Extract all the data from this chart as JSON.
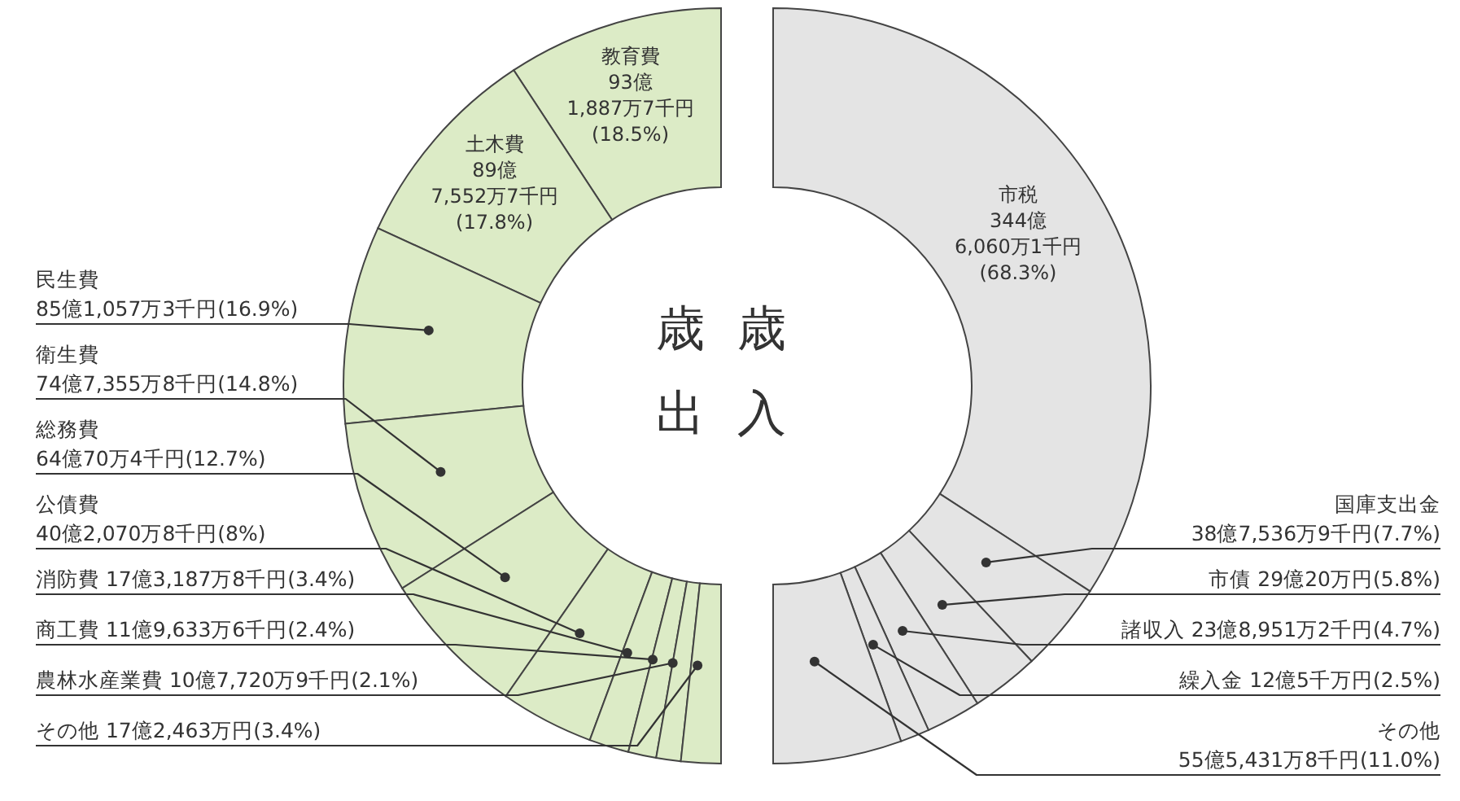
{
  "chart_data": [
    {
      "type": "donut",
      "title": "歳出",
      "categories": [
        "教育費",
        "土木費",
        "民生費",
        "衛生費",
        "総務費",
        "公債費",
        "消防費",
        "商工費",
        "農林水産業費",
        "その他"
      ],
      "values": [
        18.5,
        17.8,
        16.9,
        14.8,
        12.7,
        8,
        3.4,
        2.4,
        2.1,
        3.4
      ],
      "value_labels": [
        "93億1,887万7千円(18.5%)",
        "89億7,552万7千円(17.8%)",
        "85億1,057万3千円(16.9%)",
        "74億7,355万8千円(14.8%)",
        "64億70万4千円(12.7%)",
        "40億2,070万8千円(8%)",
        "17億3,187万8千円(3.4%)",
        "11億9,633万6千円(2.4%)",
        "10億7,720万9千円(2.1%)",
        "17億2,463万円(3.4%)"
      ],
      "colors": [
        "#dcebc6",
        "#dcebc6",
        "#dcebc6",
        "#dcebc6",
        "#dcebc6",
        "#dcebc6",
        "#dcebc6",
        "#dcebc6",
        "#dcebc6",
        "#dcebc6"
      ]
    },
    {
      "type": "donut",
      "title": "歳入",
      "categories": [
        "市税",
        "国庫支出金",
        "市債",
        "諸収入",
        "繰入金",
        "その他"
      ],
      "values": [
        68.3,
        7.7,
        5.8,
        4.7,
        2.5,
        11.0
      ],
      "value_labels": [
        "344億6,060万1千円(68.3%)",
        "38億7,536万9千円(7.7%)",
        "29億20万円(5.8%)",
        "23億8,951万2千円(4.7%)",
        "12億5千万円(2.5%)",
        "55億5,431万8千円(11.0%)"
      ],
      "colors": [
        "#e4e4e4",
        "#e4e4e4",
        "#e4e4e4",
        "#e4e4e4",
        "#e4e4e4",
        "#e4e4e4"
      ]
    }
  ]
}
